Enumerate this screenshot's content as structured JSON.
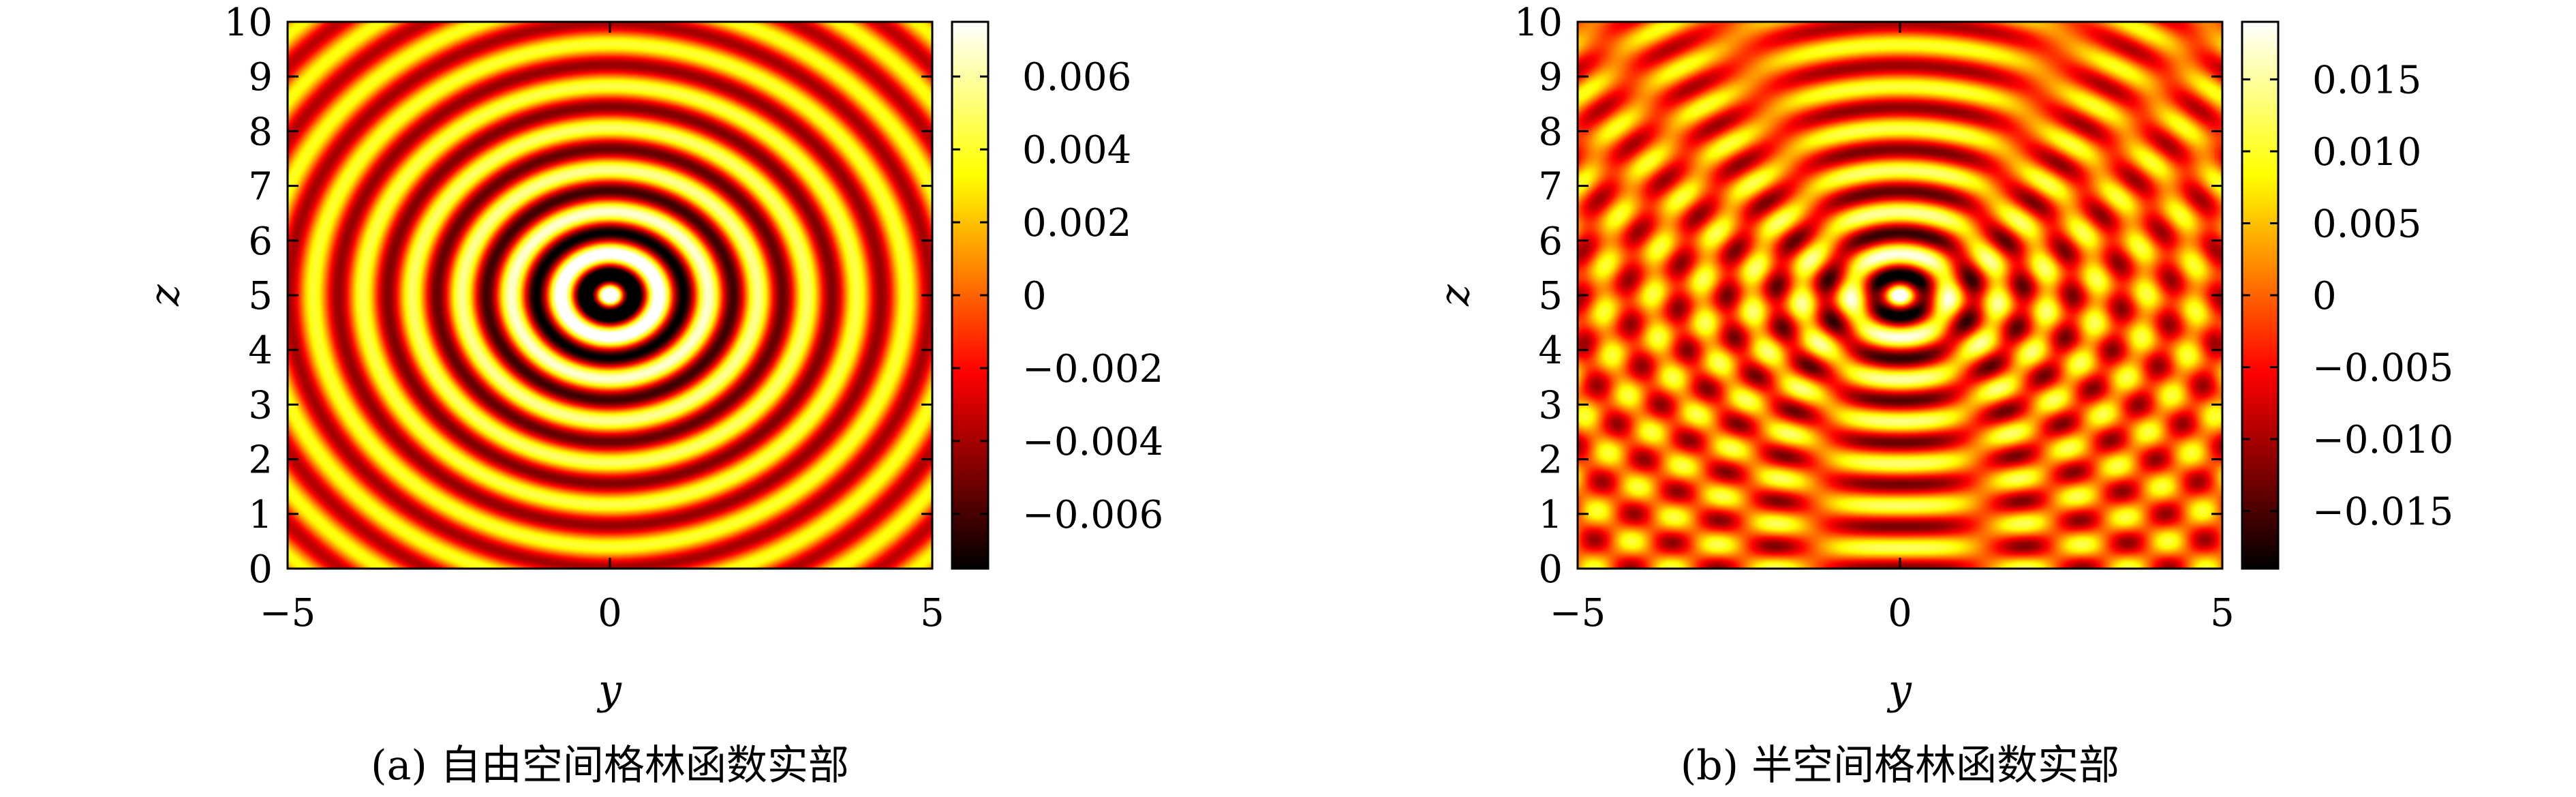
{
  "colors": {
    "colormap": [
      "#000000",
      "#ff0000",
      "#ffff00",
      "#ffffff"
    ],
    "axis": "#000000"
  },
  "chart_data": [
    {
      "type": "heatmap",
      "title": "",
      "caption": "(a) 自由空间格林函数实部",
      "xlabel": "y",
      "ylabel": "z",
      "xlim": [
        -5,
        5
      ],
      "ylim": [
        0,
        10
      ],
      "xticks": [
        "−5",
        "0",
        "5"
      ],
      "yticks": [
        "0",
        "1",
        "2",
        "3",
        "4",
        "5",
        "6",
        "7",
        "8",
        "9",
        "10"
      ],
      "colorbar": {
        "range": [
          -0.0075,
          0.0075
        ],
        "ticks": [
          {
            "value": 0.006,
            "label": "0.006"
          },
          {
            "value": 0.004,
            "label": "0.004"
          },
          {
            "value": 0.002,
            "label": "0.002"
          },
          {
            "value": 0,
            "label": "0"
          },
          {
            "value": -0.002,
            "label": "−0.002"
          },
          {
            "value": -0.004,
            "label": "−0.004"
          },
          {
            "value": -0.006,
            "label": "−0.006"
          }
        ]
      },
      "field": {
        "source": [
          0,
          5
        ],
        "wavenumber": 8.2,
        "image_source": false
      }
    },
    {
      "type": "heatmap",
      "title": "",
      "caption": "(b) 半空间格林函数实部",
      "xlabel": "y",
      "ylabel": "z",
      "xlim": [
        -5,
        5
      ],
      "ylim": [
        0,
        10
      ],
      "xticks": [
        "−5",
        "0",
        "5"
      ],
      "yticks": [
        "0",
        "1",
        "2",
        "3",
        "4",
        "5",
        "6",
        "7",
        "8",
        "9",
        "10"
      ],
      "colorbar": {
        "range": [
          -0.019,
          0.019
        ],
        "ticks": [
          {
            "value": 0.015,
            "label": "0.015"
          },
          {
            "value": 0.01,
            "label": "0.010"
          },
          {
            "value": 0.005,
            "label": "0.005"
          },
          {
            "value": 0,
            "label": "0"
          },
          {
            "value": -0.005,
            "label": "−0.005"
          },
          {
            "value": -0.01,
            "label": "−0.010"
          },
          {
            "value": -0.015,
            "label": "−0.015"
          }
        ]
      },
      "field": {
        "source": [
          0,
          5
        ],
        "wavenumber": 8.2,
        "image_source": true,
        "image_source_point": [
          0,
          -5
        ]
      }
    }
  ]
}
